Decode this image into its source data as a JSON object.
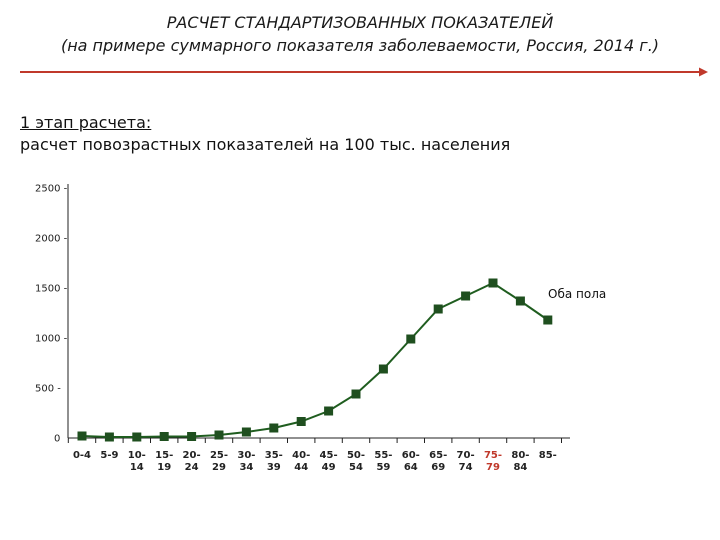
{
  "header": {
    "title": "РАСЧЕТ СТАНДАРТИЗОВАННЫХ ПОКАЗАТЕЛЕЙ",
    "subtitle": "(на примере суммарного показателя заболеваемости, Россия, 2014 г.)"
  },
  "stage": {
    "heading": "1 этап расчета:",
    "description": "расчет повозрастных показателей на 100 тыс. населения"
  },
  "colors": {
    "accent_line": "#c0392b",
    "series": "#1f5d1f",
    "marker": "#1f4f1f",
    "highlight_tick": "#c0392b"
  },
  "chart_data": {
    "type": "line",
    "title": "",
    "xlabel": "",
    "ylabel": "",
    "ylim": [
      0,
      2500
    ],
    "yticks": [
      "0",
      "500 -",
      "1000 -",
      "1500 -",
      "2000 -",
      "2500 -"
    ],
    "categories": [
      "0-4",
      "5-9",
      "10-14",
      "15-19",
      "20-24",
      "25-29",
      "30-34",
      "35-39",
      "40-44",
      "45-49",
      "50-54",
      "55-59",
      "60-64",
      "65-69",
      "70-74",
      "75-79",
      "80-84",
      "85-"
    ],
    "x_tick_lines": [
      [
        "0-4"
      ],
      [
        "5-9"
      ],
      [
        "10-",
        "14"
      ],
      [
        "15-",
        "19"
      ],
      [
        "20-",
        "24"
      ],
      [
        "25-",
        "29"
      ],
      [
        "30-",
        "34"
      ],
      [
        "35-",
        "39"
      ],
      [
        "40-",
        "44"
      ],
      [
        "45-",
        "49"
      ],
      [
        "50-",
        "54"
      ],
      [
        "55-",
        "59"
      ],
      [
        "60-",
        "64"
      ],
      [
        "65-",
        "69"
      ],
      [
        "70-",
        "74"
      ],
      [
        "75-",
        "79"
      ],
      [
        "80-",
        "84"
      ],
      [
        "85-"
      ]
    ],
    "highlighted_category": "75-79",
    "series": [
      {
        "name": "Оба пола",
        "values": [
          20,
          10,
          10,
          15,
          15,
          30,
          60,
          100,
          165,
          270,
          440,
          690,
          990,
          1290,
          1420,
          1550,
          1370,
          1180
        ]
      }
    ],
    "grid": false,
    "legend": "inline-right"
  }
}
